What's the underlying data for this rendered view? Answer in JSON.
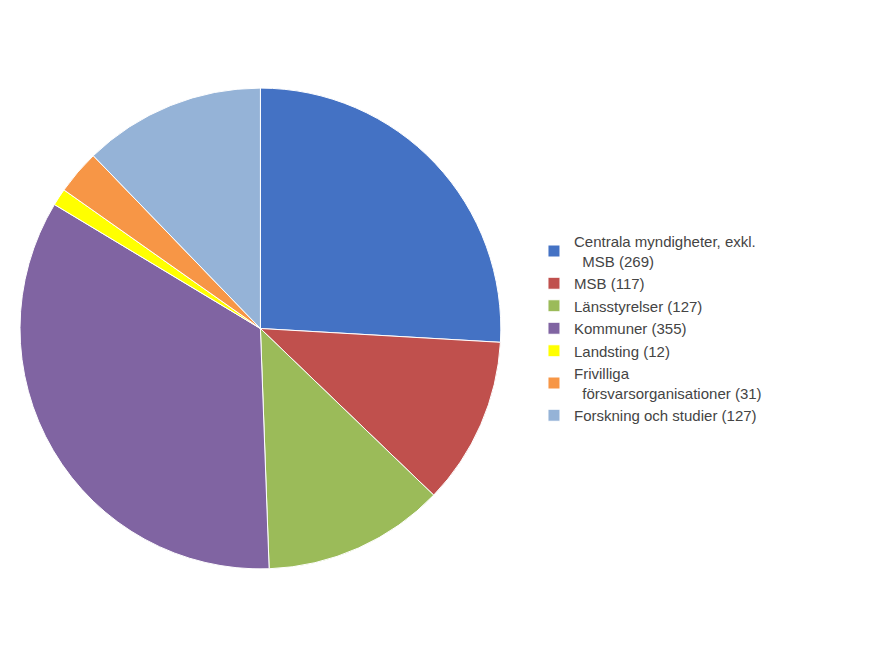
{
  "chart_data": {
    "type": "pie",
    "categories": [
      "Centrala myndigheter, exkl.\n  MSB (269)",
      "MSB (117)",
      "Länsstyrelser (127)",
      "Kommuner (355)",
      "Landsting (12)",
      "Frivilliga\n  försvarsorganisationer (31)",
      "Forskning och studier (127)"
    ],
    "values": [
      269,
      117,
      127,
      355,
      12,
      31,
      127
    ],
    "colors": [
      "#4472C4",
      "#C0504D",
      "#9BBB59",
      "#8064A2",
      "#FFFF00",
      "#F79646",
      "#95B3D7"
    ],
    "legend": "right"
  }
}
